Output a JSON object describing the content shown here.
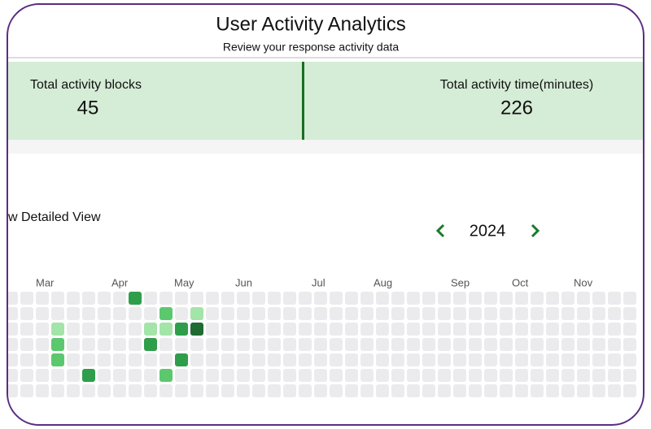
{
  "header": {
    "title": "User Activity Analytics",
    "subtitle": "Review your response activity data"
  },
  "stats": [
    {
      "label": "Total activity blocks",
      "value": 45
    },
    {
      "label": "Total activity time(minutes)",
      "value": 226
    }
  ],
  "detail_link": "w Detailed View",
  "year": 2024,
  "heatmap": {
    "months": [
      "Mar",
      "Apr",
      "May",
      "Jun",
      "Jul",
      "Aug",
      "Sep",
      "Oct",
      "Nov"
    ],
    "level_colors": [
      "#ebebed",
      "#a3e4a9",
      "#5cc86e",
      "#2e9e4b",
      "#1f6b32"
    ],
    "levels": [
      [
        0,
        0,
        0,
        0,
        0,
        0,
        0,
        0,
        3,
        0,
        0,
        0,
        0,
        0,
        0,
        0,
        0,
        0,
        0,
        0,
        0,
        0,
        0,
        0,
        0,
        0,
        0,
        0,
        0,
        0,
        0,
        0,
        0,
        0,
        0,
        0,
        0,
        0,
        0,
        0,
        0
      ],
      [
        0,
        0,
        0,
        0,
        0,
        0,
        0,
        0,
        0,
        0,
        2,
        0,
        1,
        0,
        0,
        0,
        0,
        0,
        0,
        0,
        0,
        0,
        0,
        0,
        0,
        0,
        0,
        0,
        0,
        0,
        0,
        0,
        0,
        0,
        0,
        0,
        0,
        0,
        0,
        0,
        0
      ],
      [
        0,
        0,
        0,
        1,
        0,
        0,
        0,
        0,
        0,
        1,
        1,
        3,
        4,
        0,
        0,
        0,
        0,
        0,
        0,
        0,
        0,
        0,
        0,
        0,
        0,
        0,
        0,
        0,
        0,
        0,
        0,
        0,
        0,
        0,
        0,
        0,
        0,
        0,
        0,
        0,
        0
      ],
      [
        0,
        0,
        0,
        2,
        0,
        0,
        0,
        0,
        0,
        3,
        0,
        0,
        0,
        0,
        0,
        0,
        0,
        0,
        0,
        0,
        0,
        0,
        0,
        0,
        0,
        0,
        0,
        0,
        0,
        0,
        0,
        0,
        0,
        0,
        0,
        0,
        0,
        0,
        0,
        0,
        0
      ],
      [
        0,
        0,
        0,
        2,
        0,
        0,
        0,
        0,
        0,
        0,
        0,
        3,
        0,
        0,
        0,
        0,
        0,
        0,
        0,
        0,
        0,
        0,
        0,
        0,
        0,
        0,
        0,
        0,
        0,
        0,
        0,
        0,
        0,
        0,
        0,
        0,
        0,
        0,
        0,
        0,
        0
      ],
      [
        0,
        0,
        0,
        0,
        0,
        3,
        0,
        0,
        0,
        0,
        2,
        0,
        0,
        0,
        0,
        0,
        0,
        0,
        0,
        0,
        0,
        0,
        0,
        0,
        0,
        0,
        0,
        0,
        0,
        0,
        0,
        0,
        0,
        0,
        0,
        0,
        0,
        0,
        0,
        0,
        0
      ],
      [
        0,
        0,
        0,
        0,
        0,
        0,
        0,
        0,
        0,
        0,
        0,
        0,
        0,
        0,
        0,
        0,
        0,
        0,
        0,
        0,
        0,
        0,
        0,
        0,
        0,
        0,
        0,
        0,
        0,
        0,
        0,
        0,
        0,
        0,
        0,
        0,
        0,
        0,
        0,
        0,
        0
      ]
    ]
  }
}
